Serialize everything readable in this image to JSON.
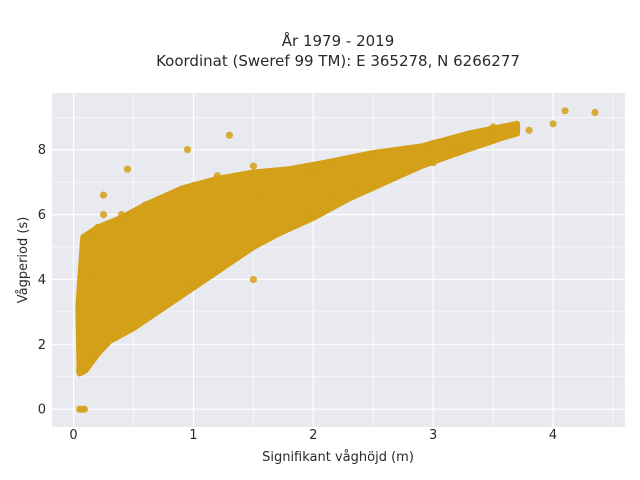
{
  "chart_data": {
    "type": "scatter",
    "title": "År 1979 - 2019",
    "subtitle": "Koordinat (Sweref 99 TM): E 365278, N 6266277",
    "xlabel": "Signifikant våghöjd (m)",
    "ylabel": "Vågperiod (s)",
    "xlim": [
      -0.18,
      4.6
    ],
    "ylim": [
      -0.55,
      9.75
    ],
    "xticks": [
      0,
      1,
      2,
      3,
      4
    ],
    "yticks": [
      0,
      2,
      4,
      6,
      8
    ],
    "grid": true,
    "background": "#e9e9f0",
    "grid_color": "#ffffff",
    "point_color": "#d4a017",
    "series": [
      {
        "points": [
          [
            0.05,
            0.0
          ],
          [
            0.07,
            0.0
          ],
          [
            0.09,
            0.0
          ],
          [
            0.05,
            1.2
          ],
          [
            0.08,
            1.5
          ],
          [
            0.1,
            2.5
          ],
          [
            0.08,
            3.5
          ],
          [
            0.1,
            5.3
          ],
          [
            0.15,
            1.5
          ],
          [
            0.15,
            3.0
          ],
          [
            0.15,
            5.2
          ],
          [
            0.2,
            2.0
          ],
          [
            0.2,
            4.0
          ],
          [
            0.2,
            5.6
          ],
          [
            0.25,
            6.0
          ],
          [
            0.3,
            2.2
          ],
          [
            0.3,
            4.5
          ],
          [
            0.4,
            2.5
          ],
          [
            0.4,
            5.8
          ],
          [
            0.4,
            6.0
          ],
          [
            0.6,
            2.8
          ],
          [
            0.6,
            5.0
          ],
          [
            0.6,
            6.3
          ],
          [
            0.8,
            3.3
          ],
          [
            0.8,
            5.5
          ],
          [
            0.8,
            6.6
          ],
          [
            1.0,
            3.8
          ],
          [
            1.0,
            5.8
          ],
          [
            1.0,
            6.9
          ],
          [
            1.2,
            4.3
          ],
          [
            1.2,
            6.1
          ],
          [
            1.2,
            7.2
          ],
          [
            1.4,
            4.8
          ],
          [
            1.4,
            6.3
          ],
          [
            1.5,
            7.5
          ],
          [
            1.6,
            5.3
          ],
          [
            1.6,
            6.6
          ],
          [
            1.8,
            5.7
          ],
          [
            1.8,
            7.1
          ],
          [
            2.0,
            6.0
          ],
          [
            2.0,
            7.3
          ],
          [
            2.2,
            6.4
          ],
          [
            2.2,
            7.5
          ],
          [
            2.4,
            6.8
          ],
          [
            2.5,
            7.7
          ],
          [
            2.7,
            7.2
          ],
          [
            2.8,
            7.9
          ],
          [
            3.0,
            7.6
          ],
          [
            3.0,
            8.2
          ],
          [
            3.2,
            7.9
          ],
          [
            3.3,
            8.4
          ],
          [
            3.5,
            8.3
          ],
          [
            3.5,
            8.7
          ],
          [
            3.8,
            8.6
          ],
          [
            4.0,
            8.8
          ],
          [
            4.1,
            9.2
          ],
          [
            4.35,
            9.15
          ],
          [
            0.45,
            7.4
          ],
          [
            0.25,
            6.6
          ],
          [
            1.5,
            4.0
          ],
          [
            0.95,
            8.0
          ],
          [
            1.3,
            8.45
          ]
        ]
      }
    ]
  }
}
